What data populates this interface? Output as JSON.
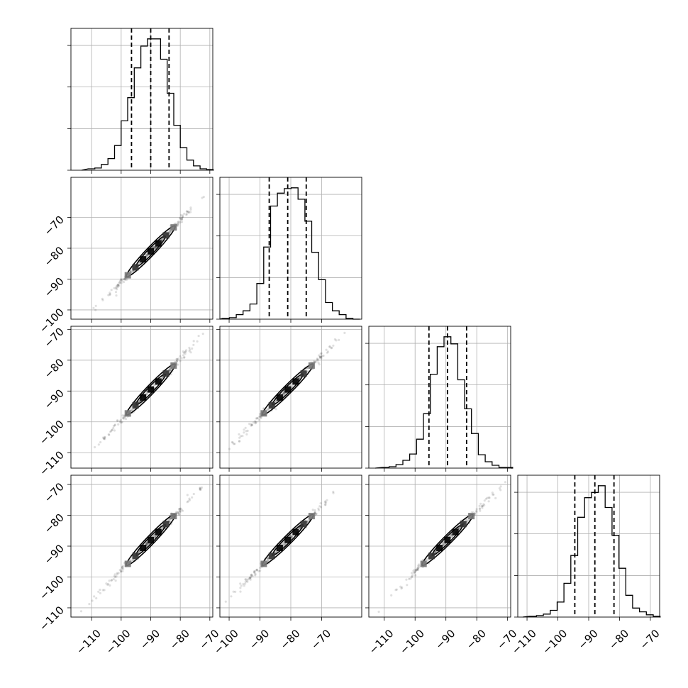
{
  "chart_data": {
    "type": "corner",
    "title": "",
    "parameters": [
      {
        "label": "",
        "mean": -90.0,
        "sd": 4.7,
        "q16": -96.5,
        "q50": -90.0,
        "q84": -83.8,
        "range": [
          -117,
          -69
        ]
      },
      {
        "label": "",
        "mean": -81.0,
        "sd": 4.7,
        "q16": -87.0,
        "q50": -81.0,
        "q84": -75.0,
        "range": [
          -103,
          -57
        ]
      },
      {
        "label": "",
        "mean": -89.5,
        "sd": 4.7,
        "q16": -95.5,
        "q50": -89.5,
        "q84": -83.3,
        "range": [
          -115,
          -69
        ]
      },
      {
        "label": "",
        "mean": -88.0,
        "sd": 4.7,
        "q16": -94.5,
        "q50": -88.0,
        "q84": -81.8,
        "range": [
          -113,
          -67
        ]
      }
    ],
    "correlation": 0.99,
    "histograms": [
      {
        "param": 0,
        "counts": [
          2,
          3,
          8,
          16,
          34,
          68,
          100,
          141,
          171,
          181,
          181,
          153,
          106,
          62,
          31,
          14,
          6,
          2,
          1
        ]
      },
      {
        "param": 1,
        "counts": [
          1,
          2,
          6,
          11,
          20,
          47,
          95,
          149,
          166,
          172,
          173,
          158,
          129,
          88,
          52,
          22,
          11,
          6,
          1
        ]
      },
      {
        "param": 2,
        "counts": [
          1,
          2,
          5,
          11,
          20,
          41,
          77,
          133,
          172,
          186,
          176,
          125,
          84,
          49,
          19,
          9,
          4,
          1,
          1
        ]
      },
      {
        "param": 3,
        "counts": [
          1,
          2,
          4,
          9,
          20,
          45,
          82,
          133,
          159,
          166,
          175,
          146,
          109,
          65,
          29,
          12,
          7,
          3,
          1
        ]
      }
    ],
    "ticks": [
      {
        "values": [
          -110,
          -100,
          -90,
          -80,
          -70
        ],
        "labels": [
          "−110",
          "−100",
          "−90",
          "−80",
          "−70"
        ]
      },
      {
        "values": [
          -100,
          -90,
          -80,
          -70
        ],
        "labels": [
          "−100",
          "−90",
          "−80",
          "−70"
        ]
      },
      {
        "values": [
          -110,
          -100,
          -90,
          -80,
          -70
        ],
        "labels": [
          "−110",
          "−100",
          "−90",
          "−80",
          "−70"
        ]
      },
      {
        "values": [
          -110,
          -100,
          -90,
          -80,
          -70
        ],
        "labels": [
          "−110",
          "−100",
          "−90",
          "−80",
          "−70"
        ]
      }
    ],
    "quantiles": [
      0.16,
      0.5,
      0.84
    ],
    "grid": true,
    "legend": "none",
    "colors": {
      "line": "#000000",
      "grid": "#b0b0b0",
      "points": "#000000"
    }
  }
}
